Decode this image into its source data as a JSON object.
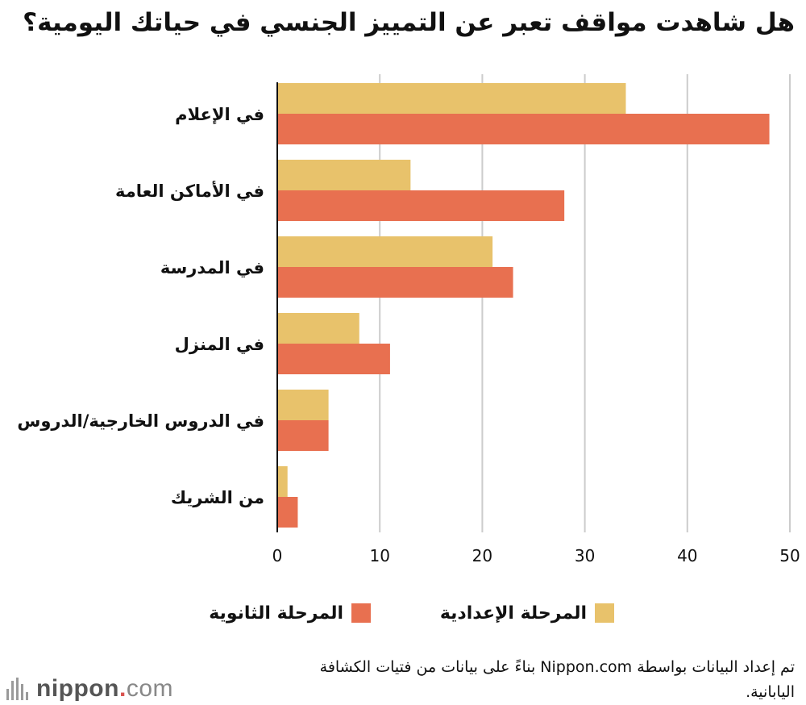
{
  "chart_data": {
    "type": "bar",
    "orientation": "horizontal",
    "title": "هل شاهدت مواقف تعبر عن التمييز الجنسي في حياتك اليومية؟",
    "categories": [
      "في الإعلام",
      "في الأماكن العامة",
      "في المدرسة",
      "في المنزل",
      "في الدروس الخارجية/الدروس",
      "من الشريك"
    ],
    "series": [
      {
        "name": "المرحلة الإعدادية",
        "color": "#e8c26b",
        "values": [
          34,
          13,
          21,
          8,
          5,
          1
        ]
      },
      {
        "name": "المرحلة الثانوية",
        "color": "#e87050",
        "values": [
          48,
          28,
          23,
          11,
          5,
          2
        ]
      }
    ],
    "xlim": [
      0,
      50
    ],
    "xticks": [
      0,
      10,
      20,
      30,
      40,
      50
    ],
    "grid": true,
    "legend_position": "bottom"
  },
  "source_text": "تم إعداد البيانات بواسطة Nippon.com بناءً على بيانات من فتيات الكشافة اليابانية.",
  "logo": {
    "brand": "nippon",
    "dot": ".",
    "suffix": "com"
  }
}
